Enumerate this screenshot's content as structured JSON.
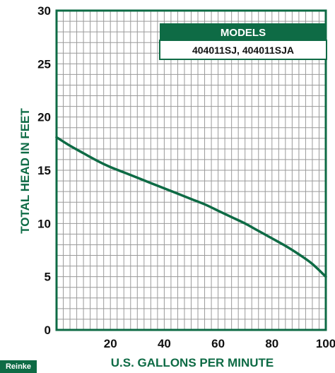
{
  "chart_data": {
    "type": "line",
    "title": "",
    "xlabel": "U.S. GALLONS PER MINUTE",
    "ylabel": "TOTAL HEAD IN FEET",
    "xlim": [
      0,
      100
    ],
    "ylim": [
      0,
      30
    ],
    "x_ticks": [
      20,
      40,
      60,
      80,
      100
    ],
    "y_ticks": [
      0,
      5,
      10,
      15,
      20,
      25,
      30
    ],
    "grid": true,
    "legend": {
      "placement": "top-right",
      "title": "MODELS",
      "entries": [
        "404011SJ, 404011SJA"
      ]
    },
    "series": [
      {
        "x": [
          0,
          5,
          10,
          15,
          20,
          25,
          30,
          35,
          40,
          45,
          50,
          55,
          60,
          65,
          70,
          75,
          80,
          85,
          90,
          95,
          100
        ],
        "y": [
          18.1,
          17.3,
          16.6,
          15.9,
          15.3,
          14.8,
          14.3,
          13.8,
          13.3,
          12.8,
          12.3,
          11.8,
          11.2,
          10.6,
          10.0,
          9.3,
          8.6,
          7.9,
          7.1,
          6.2,
          5.0
        ]
      }
    ]
  },
  "corner_badge": "Reinke",
  "colors": {
    "accent": "#0e6b45",
    "grid": "#9a9a9a",
    "line": "#0e6b45",
    "text": "#111111"
  }
}
